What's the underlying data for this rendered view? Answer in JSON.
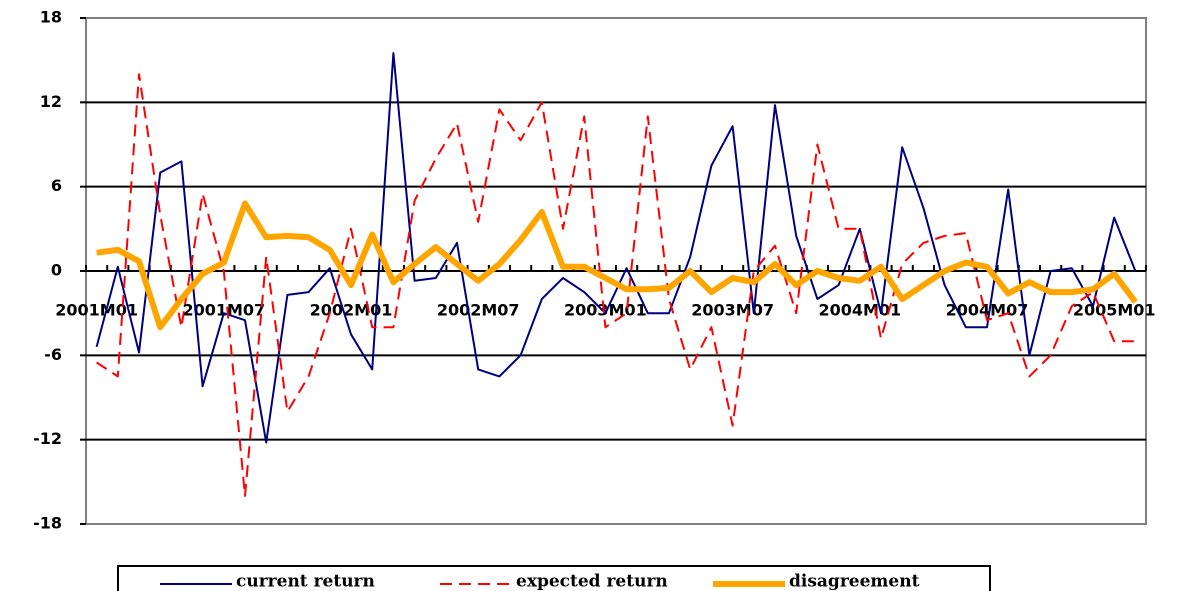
{
  "chart_data": {
    "type": "line",
    "categories": [
      "2001M01",
      null,
      null,
      null,
      null,
      null,
      "2001M07",
      null,
      null,
      null,
      null,
      null,
      "2002M01",
      null,
      null,
      null,
      null,
      null,
      "2002M07",
      null,
      null,
      null,
      null,
      null,
      "2003M01",
      null,
      null,
      null,
      null,
      null,
      "2003M07",
      null,
      null,
      null,
      null,
      null,
      "2004M01",
      null,
      null,
      null,
      null,
      null,
      "2004M07",
      null,
      null,
      null,
      null,
      null,
      "2005M01",
      null
    ],
    "series": [
      {
        "name": "current return",
        "color": "#000080",
        "dash": "solid",
        "width": 2,
        "values": [
          -5.4,
          0.3,
          -5.8,
          7,
          7.8,
          -8.2,
          -3,
          -3.5,
          -12.2,
          -1.7,
          -1.5,
          0.2,
          -4.5,
          -7,
          15.5,
          -0.7,
          -0.5,
          2,
          -7,
          -7.5,
          -6,
          -2,
          -0.5,
          -1.5,
          -3,
          0.2,
          -3,
          -3,
          1,
          7.5,
          10.3,
          -3,
          11.8,
          2.5,
          -2,
          -1,
          3,
          -3,
          8.8,
          4.5,
          -1,
          -4,
          -4,
          5.8,
          -6,
          0,
          0.2,
          -2.5,
          3.8,
          0
        ]
      },
      {
        "name": "expected return",
        "color": "#ff0000",
        "dash": "dashed",
        "width": 2,
        "values": [
          -6.5,
          -7.5,
          14,
          4,
          -4,
          5.5,
          0,
          -16,
          1,
          -10,
          -7.5,
          -3,
          3,
          -4,
          -4,
          5,
          8,
          10.5,
          3.5,
          11.5,
          9.3,
          12,
          3,
          11,
          -4,
          -3,
          11,
          -2,
          -7,
          -4,
          -11,
          0,
          1.8,
          -3,
          9,
          3,
          3,
          -4.8,
          0.5,
          2,
          2.5,
          2.7,
          -3.5,
          -3,
          -7.5,
          -6,
          -2.5,
          -1.5,
          -5,
          -5
        ]
      },
      {
        "name": "disagreement",
        "color": "#ffa500",
        "dash": "solid",
        "width": 6,
        "values": [
          1.3,
          1.5,
          0.7,
          -4,
          -2,
          -0.2,
          0.6,
          4.8,
          2.4,
          2.5,
          2.4,
          1.5,
          -1,
          2.6,
          -0.8,
          0.5,
          1.7,
          0.5,
          -0.7,
          0.5,
          2.2,
          4.2,
          0.3,
          0.3,
          -0.5,
          -1.3,
          -1.3,
          -1.2,
          0,
          -1.5,
          -0.5,
          -0.8,
          0.5,
          -1,
          0,
          -0.5,
          -0.7,
          0.3,
          -2,
          -1,
          0,
          0.6,
          0.3,
          -1.6,
          -0.8,
          -1.5,
          -1.5,
          -1.3,
          -0.2,
          -2.2
        ]
      }
    ],
    "ylim": [
      -18,
      18
    ],
    "yticks": [
      -18,
      -12,
      -6,
      0,
      6,
      12,
      18
    ],
    "grid": true,
    "legend": "bottom"
  }
}
